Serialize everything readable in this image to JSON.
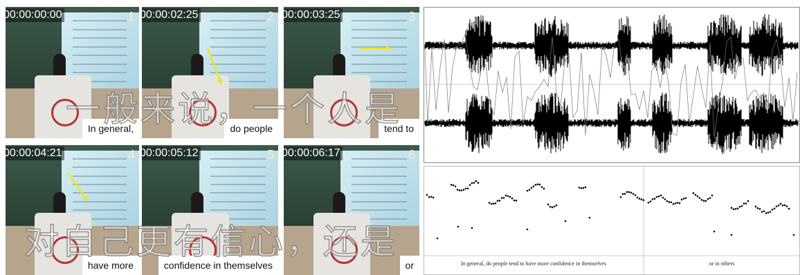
{
  "frames": [
    {
      "timestamp": "00:00:00:00",
      "number": "1",
      "subtitle": "In general,"
    },
    {
      "timestamp": "00:00:02:25",
      "number": "2",
      "subtitle": "do people"
    },
    {
      "timestamp": "00:00:03:25",
      "number": "3",
      "subtitle": "tend to"
    },
    {
      "timestamp": "00:00:04:21",
      "number": "4",
      "subtitle": "have more"
    },
    {
      "timestamp": "00:00:05:12",
      "number": "5",
      "subtitle": "confidence in themselves"
    },
    {
      "timestamp": "00:00:06:17",
      "number": "6",
      "subtitle": "or"
    }
  ],
  "captions": [
    "一般来说，一个人是",
    "对自己更有信心，还是"
  ],
  "transcript": [
    "In general, do people tend to have more confidence in themselves",
    "or in others"
  ]
}
